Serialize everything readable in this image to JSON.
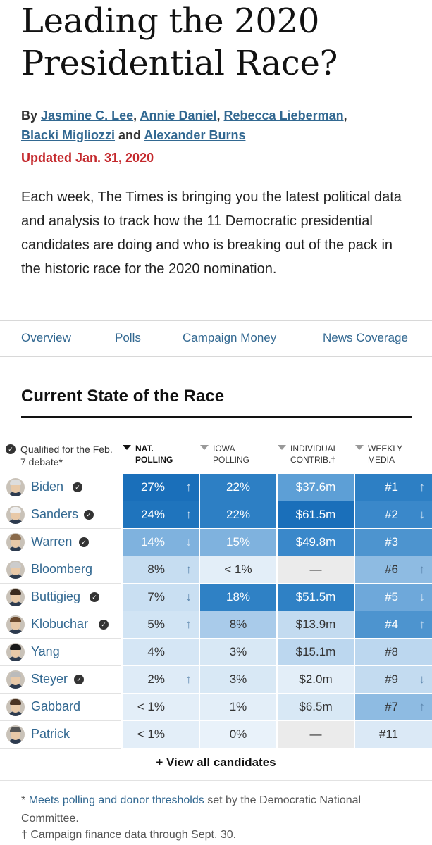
{
  "headline": "Leading the 2020 Presidential Race?",
  "byline": {
    "prefix": "By",
    "authors": [
      "Jasmine C. Lee",
      "Annie Daniel",
      "Rebecca Lieberman",
      "Blacki Migliozzi",
      "Alexander Burns"
    ],
    "sep_comma": ",",
    "sep_and": "and"
  },
  "updated": "Updated Jan. 31, 2020",
  "intro": "Each week, The Times is bringing you the latest political data and analysis to track how the 11 Democratic presidential candidates are doing and who is breaking out of the pack in the historic race for the 2020 nomination.",
  "nav": [
    "Overview",
    "Polls",
    "Campaign Money",
    "News Coverage"
  ],
  "section_title": "Current State of the Race",
  "qualified_note": "Qualified for the Feb. 7 debate*",
  "check_glyph": "✓",
  "columns": [
    {
      "line1": "NAT.",
      "line2": "POLLING"
    },
    {
      "line1": "IOWA",
      "line2": "POLLING"
    },
    {
      "line1": "INDIVIDUAL",
      "line2": "CONTRIB.†"
    },
    {
      "line1": "WEEKLY",
      "line2": "MEDIA"
    }
  ],
  "arrows": {
    "up": "↑",
    "down": "↓"
  },
  "candidates": [
    {
      "name": "Biden",
      "qualified": true,
      "nat": "27%",
      "nat_trend": "up",
      "iowa": "22%",
      "contrib": "$37.6m",
      "media": "#1",
      "media_trend": "up",
      "colors": {
        "nat": "#1a6fba",
        "iowa": "#2d7fc4",
        "contrib": "#5d9fd6",
        "media": "#2d7fc4"
      }
    },
    {
      "name": "Sanders",
      "qualified": true,
      "nat": "24%",
      "nat_trend": "up",
      "iowa": "22%",
      "contrib": "$61.5m",
      "media": "#2",
      "media_trend": "down",
      "colors": {
        "nat": "#1f74bd",
        "iowa": "#2d7fc4",
        "contrib": "#1a6fba",
        "media": "#3a88ca"
      }
    },
    {
      "name": "Warren",
      "qualified": true,
      "nat": "14%",
      "nat_trend": "down",
      "iowa": "15%",
      "contrib": "$49.8m",
      "media": "#3",
      "media_trend": "",
      "colors": {
        "nat": "#7fb2de",
        "iowa": "#7fb2de",
        "contrib": "#3a88ca",
        "media": "#4d94cf"
      }
    },
    {
      "name": "Bloomberg",
      "qualified": false,
      "nat": "8%",
      "nat_trend": "up",
      "iowa": "< 1%",
      "contrib": "—",
      "media": "#6",
      "media_trend": "up",
      "colors": {
        "nat": "#c6ddf1",
        "iowa": "#e3eef8",
        "contrib": "#ebebeb",
        "media": "#8ebbe2"
      }
    },
    {
      "name": "Buttigieg",
      "qualified": true,
      "nat": "7%",
      "nat_trend": "down",
      "iowa": "18%",
      "contrib": "$51.5m",
      "media": "#5",
      "media_trend": "down",
      "colors": {
        "nat": "#c9dff2",
        "iowa": "#2f81c5",
        "contrib": "#2f81c5",
        "media": "#6ea8da"
      }
    },
    {
      "name": "Klobuchar",
      "qualified": true,
      "nat": "5%",
      "nat_trend": "up",
      "iowa": "8%",
      "contrib": "$13.9m",
      "media": "#4",
      "media_trend": "up",
      "colors": {
        "nat": "#d1e4f4",
        "iowa": "#a9cbea",
        "contrib": "#c3dbf0",
        "media": "#4d94cf"
      }
    },
    {
      "name": "Yang",
      "qualified": false,
      "nat": "4%",
      "nat_trend": "",
      "iowa": "3%",
      "contrib": "$15.1m",
      "media": "#8",
      "media_trend": "",
      "colors": {
        "nat": "#d5e6f5",
        "iowa": "#d8e8f5",
        "contrib": "#bcd7ef",
        "media": "#bcd7ef"
      }
    },
    {
      "name": "Steyer",
      "qualified": true,
      "nat": "2%",
      "nat_trend": "up",
      "iowa": "3%",
      "contrib": "$2.0m",
      "media": "#9",
      "media_trend": "down",
      "colors": {
        "nat": "#deebf7",
        "iowa": "#d8e8f5",
        "contrib": "#e3eef8",
        "media": "#c3dbf0"
      }
    },
    {
      "name": "Gabbard",
      "qualified": false,
      "nat": "< 1%",
      "nat_trend": "",
      "iowa": "1%",
      "contrib": "$6.5m",
      "media": "#7",
      "media_trend": "up",
      "colors": {
        "nat": "#e3eef8",
        "iowa": "#e3eef8",
        "contrib": "#d8e8f5",
        "media": "#8ebbe2"
      }
    },
    {
      "name": "Patrick",
      "qualified": false,
      "nat": "< 1%",
      "nat_trend": "",
      "iowa": "0%",
      "contrib": "—",
      "media": "#11",
      "media_trend": "",
      "colors": {
        "nat": "#e3eef8",
        "iowa": "#e9f2fa",
        "contrib": "#ebebeb",
        "media": "#dbe9f6"
      }
    }
  ],
  "view_all": "+ View all candidates",
  "footnote": {
    "star": "*",
    "link": "Meets polling and donor thresholds",
    "rest": "set by the Democratic National Committee.",
    "dagger_note": "† Campaign finance data through Sept. 30."
  }
}
